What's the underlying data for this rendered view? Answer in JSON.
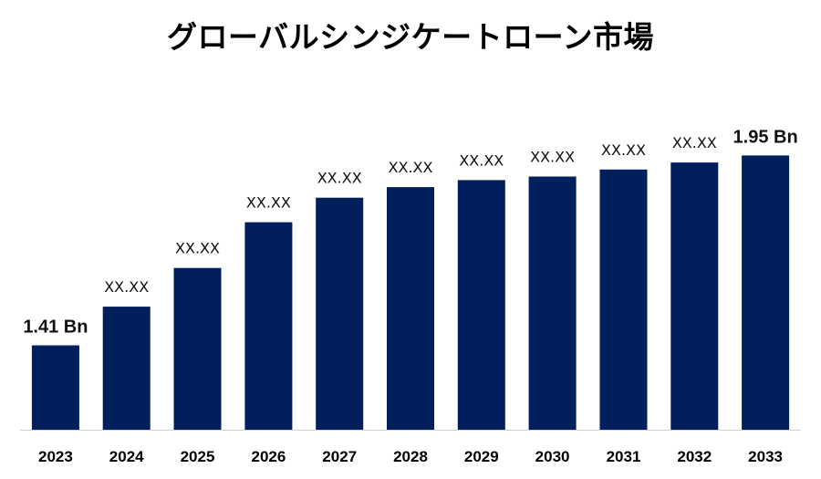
{
  "chart_data": {
    "type": "bar",
    "title": "グローバルシンジケートローン市場",
    "categories": [
      "2023",
      "2024",
      "2025",
      "2026",
      "2027",
      "2028",
      "2029",
      "2030",
      "2031",
      "2032",
      "2033"
    ],
    "values": [
      1.41,
      1.52,
      1.63,
      1.76,
      1.83,
      1.86,
      1.88,
      1.89,
      1.91,
      1.93,
      1.95
    ],
    "data_labels": [
      "1.41 Bn",
      "XX.XX",
      "XX.XX",
      "XX.XX",
      "XX.XX",
      "XX.XX",
      "XX.XX",
      "XX.XX",
      "XX.XX",
      "XX.XX",
      "1.95 Bn"
    ],
    "xlabel": "",
    "ylabel": "",
    "ylim": [
      1.17,
      1.99
    ],
    "grid": false,
    "bar_color": "#001f5c",
    "axis_color": "#d0d0d0"
  }
}
